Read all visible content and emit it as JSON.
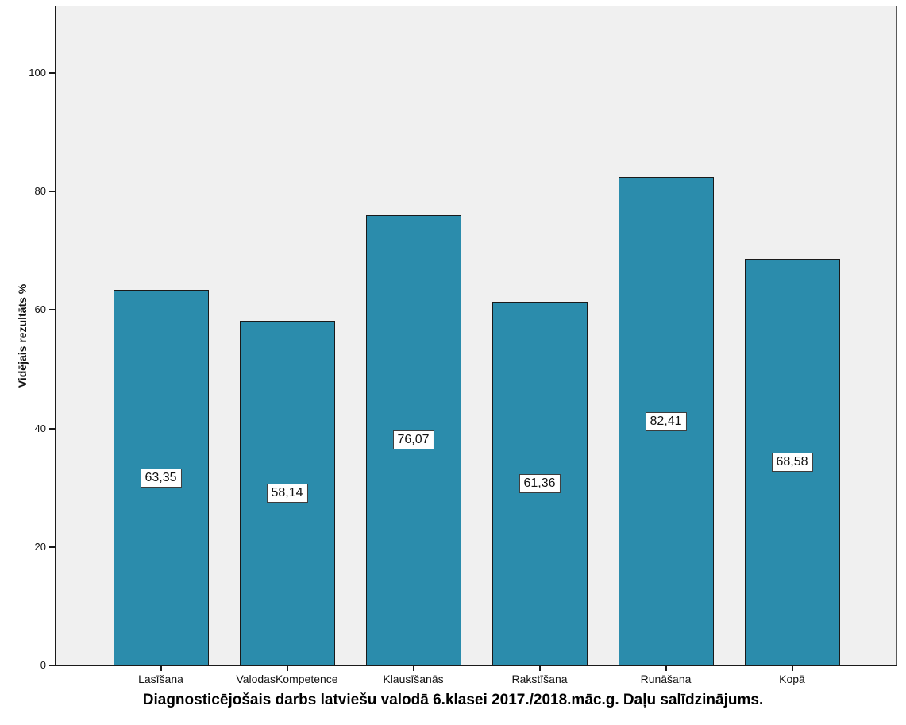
{
  "chart_data": {
    "type": "bar",
    "title": "Diagnosticējošais darbs latviešu valodā 6.klasei 2017./2018.māc.g. Daļu salīdzinājums.",
    "ylabel": "Vidējais rezultāts %",
    "xlabel": "",
    "categories": [
      "Lasīšana",
      "ValodasKompetence",
      "Klausīšanās",
      "Rakstīšana",
      "Runāšana",
      "Kopā"
    ],
    "values": [
      63.35,
      58.14,
      76.07,
      61.36,
      82.41,
      68.58
    ],
    "value_labels": [
      "63,35",
      "58,14",
      "76,07",
      "61,36",
      "82,41",
      "68,58"
    ],
    "yticks": [
      0,
      20,
      40,
      60,
      80,
      100
    ],
    "ytick_labels": [
      "0",
      "20",
      "40",
      "60",
      "80",
      "100"
    ],
    "ylim": [
      0,
      111.4
    ],
    "grid": false,
    "legend": null,
    "value_label_position": "middle-of-bar",
    "colors": {
      "bar_fill": "#2B8CAC",
      "bar_border": "#1A1A1A",
      "plot_background": "#F0F0F0",
      "frame_border": "#5A5A5A",
      "axis_line": "#1A1A1A",
      "value_box_background": "#FFFFFF",
      "value_box_border": "#3C3C3C",
      "text": "#111111",
      "page_background": "#FFFFFF"
    }
  }
}
